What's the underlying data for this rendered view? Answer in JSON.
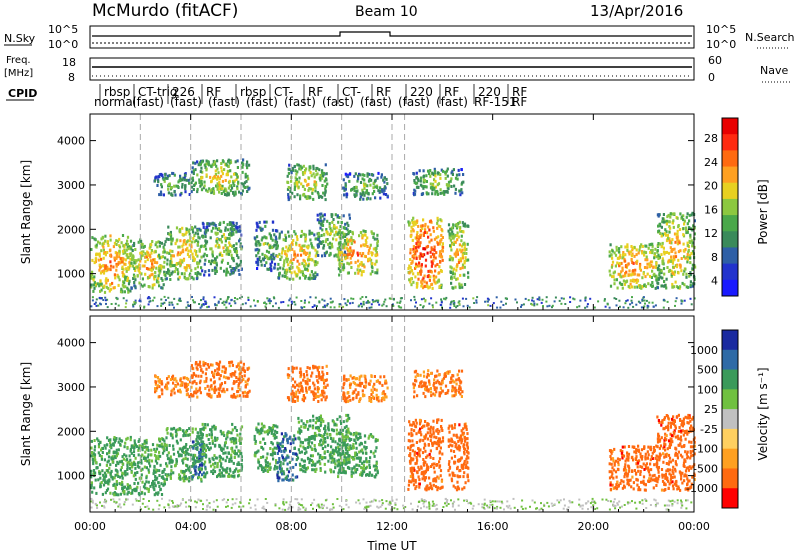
{
  "header": {
    "station": "McMurdo (fitACF)",
    "beam": "Beam 10",
    "date": "13/Apr/2016"
  },
  "summary": {
    "nsky_label": "N.Sky",
    "nsky_ticks": [
      "10^5",
      "10^0"
    ],
    "nsearch_label": "N.Search",
    "nsearch_ticks": [
      "10^5",
      "10^0"
    ],
    "freq_label_1": "Freq.",
    "freq_label_2": "[MHz]",
    "freq_ticks": [
      "18",
      "8"
    ],
    "nave_label": "Nave",
    "nave_ticks": [
      "60",
      "0"
    ],
    "cpid_label": "CPID",
    "cpid_row1": [
      "rbsp",
      "CT-trig",
      "226",
      "RF",
      "rbsp",
      "CT-",
      "RF",
      "CT-",
      "RF",
      "220",
      "RF",
      "220",
      "RF"
    ],
    "cpid_row2": [
      "normal",
      "(fast)",
      "(fast)",
      "(fast)",
      "(fast)",
      "(fast)",
      "(fast)",
      "(fast)",
      "(fast)",
      "(fast)",
      "RF-151",
      "RF"
    ]
  },
  "colors": {
    "power_scale": [
      "#1a1aff",
      "#2233cc",
      "#2e5fa6",
      "#3a8a5a",
      "#4aa84a",
      "#8cc840",
      "#e8d020",
      "#ffa020",
      "#ff6a10",
      "#ff2a10",
      "#e80000"
    ],
    "velocity_scale": [
      "#ff0000",
      "#ff6a10",
      "#ffa020",
      "#ffd060",
      "#c0c0c0",
      "#70c040",
      "#3a9a5a",
      "#2e6aa6",
      "#1a2aa0"
    ]
  },
  "chart_data": [
    {
      "type": "heatmap",
      "name": "Power",
      "ylabel": "Slant Range [km]",
      "xlabel": "",
      "x_ticks": [
        "00:00",
        "04:00",
        "08:00",
        "12:00",
        "16:00",
        "20:00",
        "00:00"
      ],
      "xlim_hours": [
        0,
        24
      ],
      "y_ticks": [
        1000,
        2000,
        3000,
        4000
      ],
      "ylim_km": [
        180,
        4600
      ],
      "colorbar_label": "Power [dB]",
      "colorbar_ticks": [
        "28",
        "24",
        "20",
        "16",
        "12",
        "8",
        "4"
      ],
      "colorbar_range": [
        0,
        30
      ],
      "dashed_lines_hours": [
        2.0,
        4.0,
        6.0,
        8.0,
        10.0,
        12.0,
        12.5
      ],
      "patches": [
        {
          "t": [
            0.0,
            1.6
          ],
          "r": [
            600,
            1900
          ],
          "level": 24
        },
        {
          "t": [
            1.6,
            3.0
          ],
          "r": [
            700,
            1800
          ],
          "level": 22
        },
        {
          "t": [
            2.5,
            4.0
          ],
          "r": [
            2800,
            3300
          ],
          "level": 16
        },
        {
          "t": [
            3.0,
            4.4
          ],
          "r": [
            900,
            2100
          ],
          "level": 22
        },
        {
          "t": [
            4.4,
            6.0
          ],
          "r": [
            1000,
            2200
          ],
          "level": 18
        },
        {
          "t": [
            4.0,
            6.3
          ],
          "r": [
            2800,
            3600
          ],
          "level": 20
        },
        {
          "t": [
            6.5,
            7.4
          ],
          "r": [
            1100,
            2200
          ],
          "level": 16
        },
        {
          "t": [
            7.4,
            9.0
          ],
          "r": [
            900,
            2000
          ],
          "level": 22
        },
        {
          "t": [
            7.8,
            9.4
          ],
          "r": [
            2700,
            3500
          ],
          "level": 20
        },
        {
          "t": [
            9.0,
            10.3
          ],
          "r": [
            1400,
            2400
          ],
          "level": 18
        },
        {
          "t": [
            9.8,
            11.4
          ],
          "r": [
            1000,
            2000
          ],
          "level": 24
        },
        {
          "t": [
            10.0,
            11.8
          ],
          "r": [
            2700,
            3300
          ],
          "level": 16
        },
        {
          "t": [
            12.6,
            14.0
          ],
          "r": [
            700,
            2300
          ],
          "level": 28
        },
        {
          "t": [
            12.8,
            14.8
          ],
          "r": [
            2800,
            3400
          ],
          "level": 18
        },
        {
          "t": [
            14.2,
            15.0
          ],
          "r": [
            700,
            2200
          ],
          "level": 22
        },
        {
          "t": [
            20.6,
            22.5
          ],
          "r": [
            700,
            1700
          ],
          "level": 24
        },
        {
          "t": [
            22.5,
            24.0
          ],
          "r": [
            700,
            2400
          ],
          "level": 22
        }
      ]
    },
    {
      "type": "heatmap",
      "name": "Velocity",
      "ylabel": "Slant Range [km]",
      "xlabel": "Time UT",
      "x_ticks": [
        "00:00",
        "04:00",
        "08:00",
        "12:00",
        "16:00",
        "20:00",
        "00:00"
      ],
      "xlim_hours": [
        0,
        24
      ],
      "y_ticks": [
        1000,
        2000,
        3000,
        4000
      ],
      "ylim_km": [
        180,
        4600
      ],
      "colorbar_label": "Velocity [m s^-1]",
      "colorbar_ticks": [
        "1000",
        "500",
        "100",
        "25",
        "-25",
        "-100",
        "-500",
        "-1000"
      ],
      "dashed_lines_hours": [
        2.0,
        4.0,
        6.0,
        8.0,
        10.0,
        12.0,
        12.5
      ],
      "patches": [
        {
          "t": [
            0.0,
            3.0
          ],
          "r": [
            600,
            1900
          ],
          "vel": 150
        },
        {
          "t": [
            2.5,
            4.0
          ],
          "r": [
            2800,
            3300
          ],
          "vel": -120
        },
        {
          "t": [
            3.0,
            4.4
          ],
          "r": [
            900,
            2100
          ],
          "vel": 150
        },
        {
          "t": [
            4.0,
            4.6
          ],
          "r": [
            1000,
            1800
          ],
          "vel": 700
        },
        {
          "t": [
            4.0,
            6.3
          ],
          "r": [
            2800,
            3600
          ],
          "vel": -200
        },
        {
          "t": [
            4.4,
            6.0
          ],
          "r": [
            1000,
            2200
          ],
          "vel": 150
        },
        {
          "t": [
            6.5,
            7.4
          ],
          "r": [
            1100,
            2200
          ],
          "vel": 150
        },
        {
          "t": [
            7.4,
            8.2
          ],
          "r": [
            900,
            2000
          ],
          "vel": 700
        },
        {
          "t": [
            8.2,
            10.3
          ],
          "r": [
            1100,
            2400
          ],
          "vel": 150
        },
        {
          "t": [
            7.8,
            9.4
          ],
          "r": [
            2700,
            3500
          ],
          "vel": -200
        },
        {
          "t": [
            9.8,
            11.4
          ],
          "r": [
            1000,
            2000
          ],
          "vel": 150
        },
        {
          "t": [
            10.0,
            11.8
          ],
          "r": [
            2700,
            3300
          ],
          "vel": -120
        },
        {
          "t": [
            12.6,
            14.0
          ],
          "r": [
            700,
            2300
          ],
          "vel": -300
        },
        {
          "t": [
            12.8,
            14.8
          ],
          "r": [
            2800,
            3400
          ],
          "vel": -150
        },
        {
          "t": [
            14.2,
            15.0
          ],
          "r": [
            700,
            2200
          ],
          "vel": -300
        },
        {
          "t": [
            20.6,
            22.5
          ],
          "r": [
            700,
            1700
          ],
          "vel": -300
        },
        {
          "t": [
            22.5,
            24.0
          ],
          "r": [
            700,
            2400
          ],
          "vel": -300
        }
      ]
    }
  ]
}
